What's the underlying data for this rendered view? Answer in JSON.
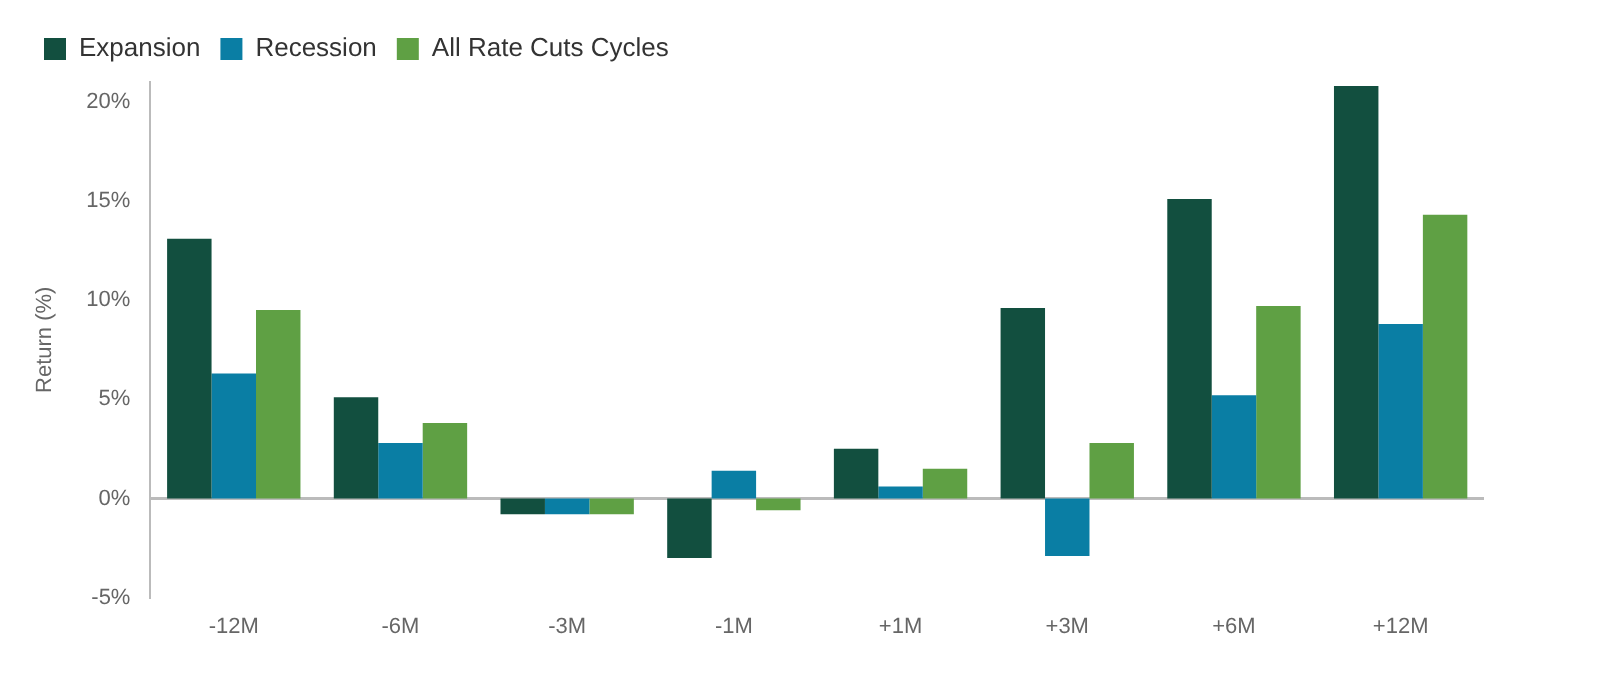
{
  "chart_data": {
    "type": "bar",
    "ylabel": "Return (%)",
    "categories": [
      "-12M",
      "-6M",
      "-3M",
      "-1M",
      "+1M",
      "+3M",
      "+6M",
      "+12M"
    ],
    "series": [
      {
        "name": "Expansion",
        "color": "#124f3f",
        "values": [
          13.1,
          5.1,
          -0.8,
          -3.0,
          2.5,
          9.6,
          15.1,
          20.8
        ]
      },
      {
        "name": "Recession",
        "color": "#0a7ea4",
        "values": [
          6.3,
          2.8,
          -0.8,
          1.4,
          0.6,
          -2.9,
          5.2,
          8.8
        ]
      },
      {
        "name": "All Rate Cuts Cycles",
        "color": "#5fa044",
        "values": [
          9.5,
          3.8,
          -0.8,
          -0.6,
          1.5,
          2.8,
          9.7,
          14.3
        ]
      }
    ],
    "ylim": [
      -5,
      21
    ],
    "yticks": [
      {
        "value": -5,
        "label": "-5%"
      },
      {
        "value": 0,
        "label": "0%"
      },
      {
        "value": 5,
        "label": "5%"
      },
      {
        "value": 10,
        "label": "10%"
      },
      {
        "value": 15,
        "label": "15%"
      },
      {
        "value": 20,
        "label": "20%"
      }
    ],
    "ref_lines": [
      {
        "axis": "y",
        "value": 0,
        "color": "#bbbbbb"
      }
    ],
    "grid": false,
    "legend": "top left"
  }
}
